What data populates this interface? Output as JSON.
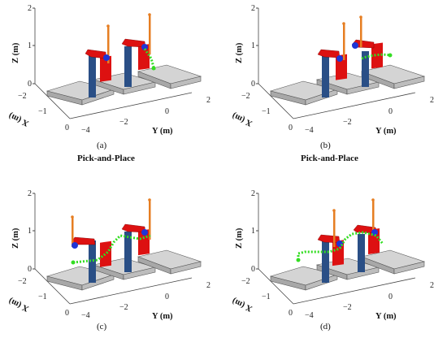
{
  "panels": [
    {
      "label": "(a)",
      "subtitle": "Pick-and-Place"
    },
    {
      "label": "(b)",
      "subtitle": "Pick-and-Place"
    },
    {
      "label": "(c)",
      "subtitle": ""
    },
    {
      "label": "(d)",
      "subtitle": ""
    }
  ],
  "axes": {
    "z_label": "Z (m)",
    "y_label": "Y (m)",
    "x_label": "X (m)",
    "z_ticks": [
      "0",
      "1",
      "2"
    ],
    "y_ticks": [
      "−4",
      "−2",
      "0",
      "2"
    ],
    "x_ticks": [
      "−2",
      "−1",
      "0"
    ]
  },
  "colors": {
    "robot_arm": "#dd1111",
    "robot_base": "#2a4f86",
    "joint": "#1f36d6",
    "tool": "#e67e22",
    "trajectory": "#33dd22",
    "table_top": "#d4d4d4",
    "table_side": "#a8a8a8"
  }
}
